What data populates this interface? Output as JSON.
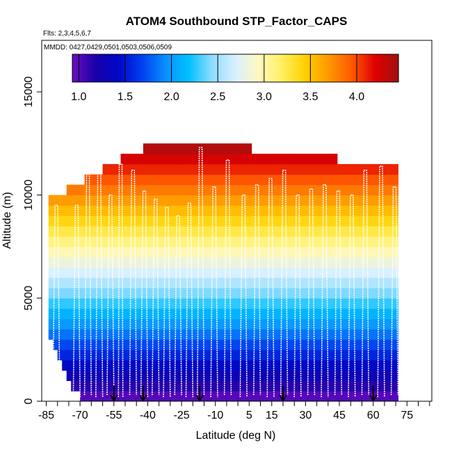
{
  "chart_data": {
    "type": "heatmap",
    "title": "ATOM4 Southbound STP_Factor_CAPS",
    "subtitle_flights": "Flts: 2,3,4,5,6,7",
    "subtitle_dates": "MMDD: 0427,0429,0501,0503,0506,0509",
    "xlabel": "Latitude (deg N)",
    "ylabel": "Altitude (m)",
    "xlim": [
      -87,
      86
    ],
    "ylim": [
      0,
      17500
    ],
    "x_ticks": [
      -85,
      -70,
      -55,
      -40,
      -25,
      -10,
      5,
      15,
      30,
      45,
      60,
      75
    ],
    "x_tick_labels": [
      "-85",
      "-70",
      "-55",
      "-40",
      "-25",
      "-10",
      "5",
      "15",
      "30",
      "45",
      "60",
      "75"
    ],
    "y_ticks": [
      0,
      5000,
      10000,
      15000
    ],
    "y_tick_labels": [
      "0",
      "5000",
      "10000",
      "15000"
    ],
    "colorbar": {
      "min": 0.93,
      "max": 4.45,
      "ticks": [
        1.0,
        1.5,
        2.0,
        2.5,
        3.0,
        3.5,
        4.0
      ],
      "tick_labels": [
        "1.0",
        "1.5",
        "2.0",
        "2.5",
        "3.0",
        "3.5",
        "4.0"
      ],
      "colors": [
        "#6a0dbf",
        "#1a00a8",
        "#0008c8",
        "#0040f0",
        "#0a90ff",
        "#00c0ff",
        "#8fdcff",
        "#d8f0ff",
        "#fff8c0",
        "#fff060",
        "#ffd000",
        "#ff9800",
        "#ff5a00",
        "#e00000",
        "#a01010"
      ]
    },
    "field": {
      "alt_step_m": 500,
      "top_steps": [
        {
          "lat": -84,
          "alt_m": 10000
        },
        {
          "lat": -76,
          "alt_m": 10500
        },
        {
          "lat": -68,
          "alt_m": 11000
        },
        {
          "lat": -59,
          "alt_m": 11500
        },
        {
          "lat": -51,
          "alt_m": 12000
        },
        {
          "lat": -41,
          "alt_m": 12500
        },
        {
          "lat": 6,
          "alt_m": 12000
        },
        {
          "lat": 44,
          "alt_m": 11500
        },
        {
          "lat": 71,
          "alt_m": 11500
        }
      ],
      "bottom_edge": [
        {
          "lat": -84,
          "alt_m": 3000
        },
        {
          "lat": -82,
          "alt_m": 2500
        },
        {
          "lat": -80,
          "alt_m": 2000
        },
        {
          "lat": -78,
          "alt_m": 1500
        },
        {
          "lat": -76,
          "alt_m": 1000
        },
        {
          "lat": -73,
          "alt_m": 500
        },
        {
          "lat": -70,
          "alt_m": 0
        }
      ]
    },
    "profiles": [
      {
        "start": -82,
        "end": -79,
        "bottom_m": 500,
        "top_m": 9500
      },
      {
        "start": -73,
        "end": -70,
        "bottom_m": 200,
        "top_m": 9500
      },
      {
        "start": -68,
        "end": -65,
        "bottom_m": 300,
        "top_m": 11000
      },
      {
        "start": -63,
        "end": -60,
        "bottom_m": 200,
        "top_m": 11500
      },
      {
        "start": -58,
        "end": -55,
        "bottom_m": 300,
        "top_m": 10000
      },
      {
        "start": -53,
        "end": -51,
        "bottom_m": 200,
        "top_m": 11500
      },
      {
        "start": -48,
        "end": -45,
        "bottom_m": 300,
        "top_m": 11200
      },
      {
        "start": -43,
        "end": -40,
        "bottom_m": 200,
        "top_m": 10200
      },
      {
        "start": -38,
        "end": -35,
        "bottom_m": 300,
        "top_m": 9800
      },
      {
        "start": -33,
        "end": -30,
        "bottom_m": 200,
        "top_m": 9400
      },
      {
        "start": -28,
        "end": -25,
        "bottom_m": 300,
        "top_m": 9000
      },
      {
        "start": -23,
        "end": -20,
        "bottom_m": 200,
        "top_m": 9600
      },
      {
        "start": -18,
        "end": -15,
        "bottom_m": 300,
        "top_m": 12300
      },
      {
        "start": -12,
        "end": -9,
        "bottom_m": 200,
        "top_m": 10400
      },
      {
        "start": -6,
        "end": -3,
        "bottom_m": 300,
        "top_m": 11700
      },
      {
        "start": 1,
        "end": 4,
        "bottom_m": 200,
        "top_m": 10000
      },
      {
        "start": 7,
        "end": 10,
        "bottom_m": 300,
        "top_m": 10500
      },
      {
        "start": 13,
        "end": 16,
        "bottom_m": 200,
        "top_m": 10800
      },
      {
        "start": 19,
        "end": 22,
        "bottom_m": 300,
        "top_m": 11200
      },
      {
        "start": 25,
        "end": 28,
        "bottom_m": 200,
        "top_m": 10000
      },
      {
        "start": 31,
        "end": 34,
        "bottom_m": 300,
        "top_m": 10300
      },
      {
        "start": 37,
        "end": 40,
        "bottom_m": 200,
        "top_m": 10500
      },
      {
        "start": 43,
        "end": 46,
        "bottom_m": 300,
        "top_m": 10200
      },
      {
        "start": 49,
        "end": 52,
        "bottom_m": 200,
        "top_m": 10000
      },
      {
        "start": 55,
        "end": 58,
        "bottom_m": 300,
        "top_m": 11200
      },
      {
        "start": 62,
        "end": 65,
        "bottom_m": 200,
        "top_m": 11400
      },
      {
        "start": 68,
        "end": 71,
        "bottom_m": 300,
        "top_m": 10400
      }
    ],
    "arrows": [
      -55,
      -42,
      -17,
      20,
      60
    ],
    "legend_placement": "none"
  }
}
